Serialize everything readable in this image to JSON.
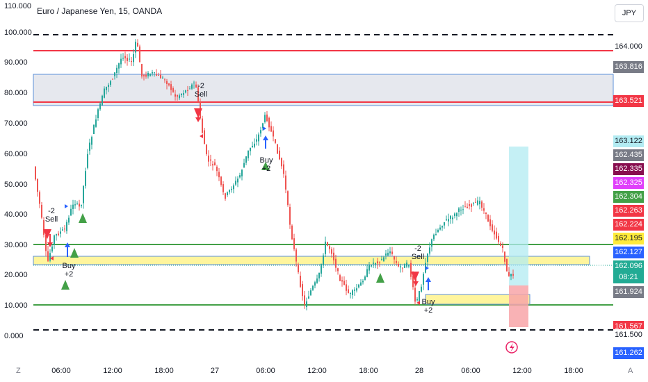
{
  "header": {
    "title": "Euro / Japanese Yen, 15, OANDA",
    "currency_button": "JPY"
  },
  "left_axis": [
    "110.000",
    "100.000",
    "90.000",
    "80.000",
    "70.000",
    "60.000",
    "50.000",
    "40.000",
    "30.000",
    "20.000",
    "10.000",
    "0.000"
  ],
  "price_labels": [
    {
      "text": "164.000",
      "bg": "#ffffff",
      "fg": "#131722"
    },
    {
      "text": "163.816",
      "bg": "#787b86",
      "fg": "#ffffff"
    },
    {
      "text": "163.521",
      "bg": "#f23645",
      "fg": "#ffffff"
    },
    {
      "text": "163.122",
      "bg": "#b2ebf2",
      "fg": "#131722"
    },
    {
      "text": "162.435",
      "bg": "#787b86",
      "fg": "#ffffff"
    },
    {
      "text": "162.335",
      "bg": "#880e4f",
      "fg": "#ffffff"
    },
    {
      "text": "162.325",
      "bg": "#e040fb",
      "fg": "#ffffff"
    },
    {
      "text": "162.304",
      "bg": "#43a047",
      "fg": "#ffffff"
    },
    {
      "text": "162.263",
      "bg": "#f23645",
      "fg": "#ffffff"
    },
    {
      "text": "162.224",
      "bg": "#f23645",
      "fg": "#ffffff"
    },
    {
      "text": "162.195",
      "bg": "#ffeb3b",
      "fg": "#131722"
    },
    {
      "text": "162.127",
      "bg": "#2962ff",
      "fg": "#ffffff"
    },
    {
      "text": "162.096",
      "bg": "#22ab94",
      "fg": "#ffffff"
    },
    {
      "text": "08:21",
      "bg": "#22ab94",
      "fg": "#ffffff"
    },
    {
      "text": "161.924",
      "bg": "#787b86",
      "fg": "#ffffff"
    },
    {
      "text": "161.567",
      "bg": "#f23645",
      "fg": "#ffffff"
    },
    {
      "text": "161.500",
      "bg": "#ffffff",
      "fg": "#131722"
    },
    {
      "text": "161.262",
      "bg": "#2962ff",
      "fg": "#ffffff"
    }
  ],
  "time_axis": [
    "06:00",
    "12:00",
    "18:00",
    "27",
    "06:00",
    "12:00",
    "18:00",
    "28",
    "06:00",
    "12:00",
    "18:00"
  ],
  "signals": [
    {
      "line1": "-2",
      "line2": "Sell"
    },
    {
      "line1": "Buy",
      "line2": "+2"
    },
    {
      "line1": "-2",
      "line2": "Sell"
    },
    {
      "line1": "Buy",
      "line2": "+2"
    },
    {
      "line1": "-2",
      "line2": "Sell"
    },
    {
      "line1": "Buy",
      "line2": "+2"
    }
  ],
  "corner_left": "Z",
  "corner_right": "A",
  "colors": {
    "up": "#26a69a",
    "down": "#ef5350",
    "red_line": "#f23645",
    "green_line": "#43a047",
    "zone_yellow": "#fff59d",
    "zone_gray": "#e0e3eb",
    "target_cyan": "#b2ebf2",
    "stop_red": "#f8a5a8"
  }
}
